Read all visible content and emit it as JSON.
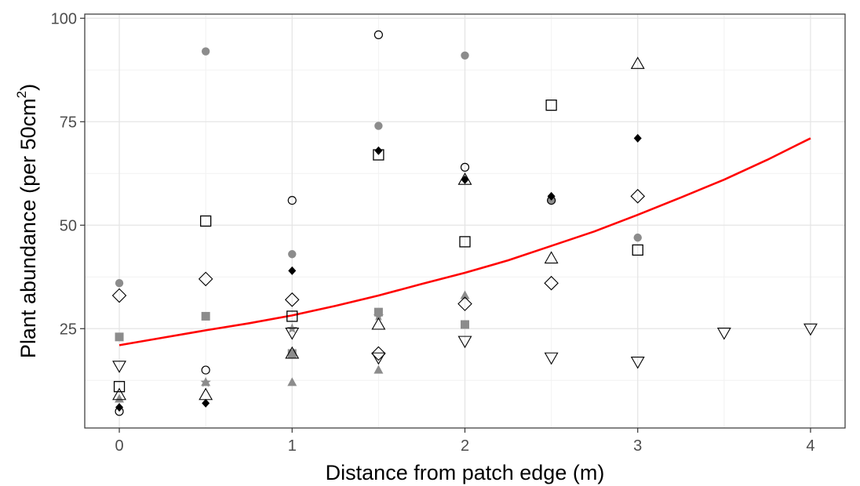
{
  "chart_data": {
    "type": "scatter",
    "xlabel": "Distance from patch edge (m)",
    "ylabel_main": "Plant abundance (per 50cm",
    "ylabel_sup": "2",
    "ylabel_close": ")",
    "xlim": [
      -0.2,
      4.2
    ],
    "ylim": [
      1,
      101
    ],
    "x_ticks": [
      0,
      1,
      2,
      3,
      4
    ],
    "y_ticks": [
      25,
      50,
      75,
      100
    ],
    "grid": true,
    "legend": "none",
    "colors": {
      "grey": "#8c8c8c",
      "black": "#000000",
      "fit_line": "#ff0000",
      "grid_major": "#e5e5e5",
      "grid_minor": "#f2f2f2",
      "panel_border": "#333333"
    },
    "series": [
      {
        "marker": "grey-circle",
        "points": [
          [
            0,
            36
          ],
          [
            0.5,
            92
          ],
          [
            1,
            43
          ],
          [
            1.5,
            74
          ],
          [
            2,
            91
          ],
          [
            2.5,
            56
          ],
          [
            3,
            47
          ]
        ]
      },
      {
        "marker": "open-circle",
        "points": [
          [
            0,
            5
          ],
          [
            0.5,
            15
          ],
          [
            1,
            56
          ],
          [
            1.5,
            96
          ],
          [
            2,
            64
          ],
          [
            2.5,
            56
          ]
        ]
      },
      {
        "marker": "black-diamond",
        "points": [
          [
            0,
            6
          ],
          [
            0.5,
            7
          ],
          [
            1,
            39
          ],
          [
            1.5,
            68
          ],
          [
            2,
            61
          ],
          [
            2.5,
            57
          ],
          [
            3,
            71
          ]
        ]
      },
      {
        "marker": "open-square",
        "points": [
          [
            0,
            11
          ],
          [
            0.5,
            51
          ],
          [
            1,
            28
          ],
          [
            1.5,
            67
          ],
          [
            2,
            46
          ],
          [
            2.5,
            79
          ],
          [
            3,
            44
          ]
        ]
      },
      {
        "marker": "grey-square",
        "points": [
          [
            0,
            23
          ],
          [
            0.5,
            28
          ],
          [
            1,
            19
          ],
          [
            1.5,
            29
          ],
          [
            2,
            26
          ]
        ]
      },
      {
        "marker": "open-diamond",
        "points": [
          [
            0,
            33
          ],
          [
            0.5,
            37
          ],
          [
            1,
            32
          ],
          [
            1.5,
            19
          ],
          [
            2,
            31
          ],
          [
            2.5,
            36
          ],
          [
            3,
            57
          ]
        ]
      },
      {
        "marker": "open-triangle-up",
        "points": [
          [
            0,
            9
          ],
          [
            0.5,
            9
          ],
          [
            1,
            19
          ],
          [
            1.5,
            26
          ],
          [
            2,
            61
          ],
          [
            2.5,
            42
          ],
          [
            3,
            89
          ]
        ]
      },
      {
        "marker": "grey-triangle-up",
        "points": [
          [
            0,
            8
          ],
          [
            0.5,
            12
          ],
          [
            1,
            12
          ],
          [
            1.5,
            15
          ],
          [
            2,
            33
          ]
        ]
      },
      {
        "marker": "open-triangle-down",
        "points": [
          [
            0,
            16
          ],
          [
            1,
            24
          ],
          [
            1.5,
            18
          ],
          [
            2,
            22
          ],
          [
            2.5,
            18
          ],
          [
            3,
            17
          ],
          [
            3.5,
            24
          ],
          [
            4,
            25
          ]
        ]
      },
      {
        "marker": "grey-star",
        "points": [
          [
            0.5,
            12
          ],
          [
            1,
            25
          ],
          [
            1.5,
            28
          ]
        ]
      }
    ],
    "fit_line": {
      "x": [
        0,
        0.25,
        0.5,
        0.75,
        1,
        1.25,
        1.5,
        1.75,
        2,
        2.25,
        2.5,
        2.75,
        3,
        3.25,
        3.5,
        3.75,
        4
      ],
      "y": [
        21,
        22.8,
        24.6,
        26.3,
        28.2,
        30.5,
        33,
        35.8,
        38.5,
        41.5,
        45,
        48.5,
        52.5,
        56.7,
        61,
        65.8,
        71
      ]
    }
  }
}
